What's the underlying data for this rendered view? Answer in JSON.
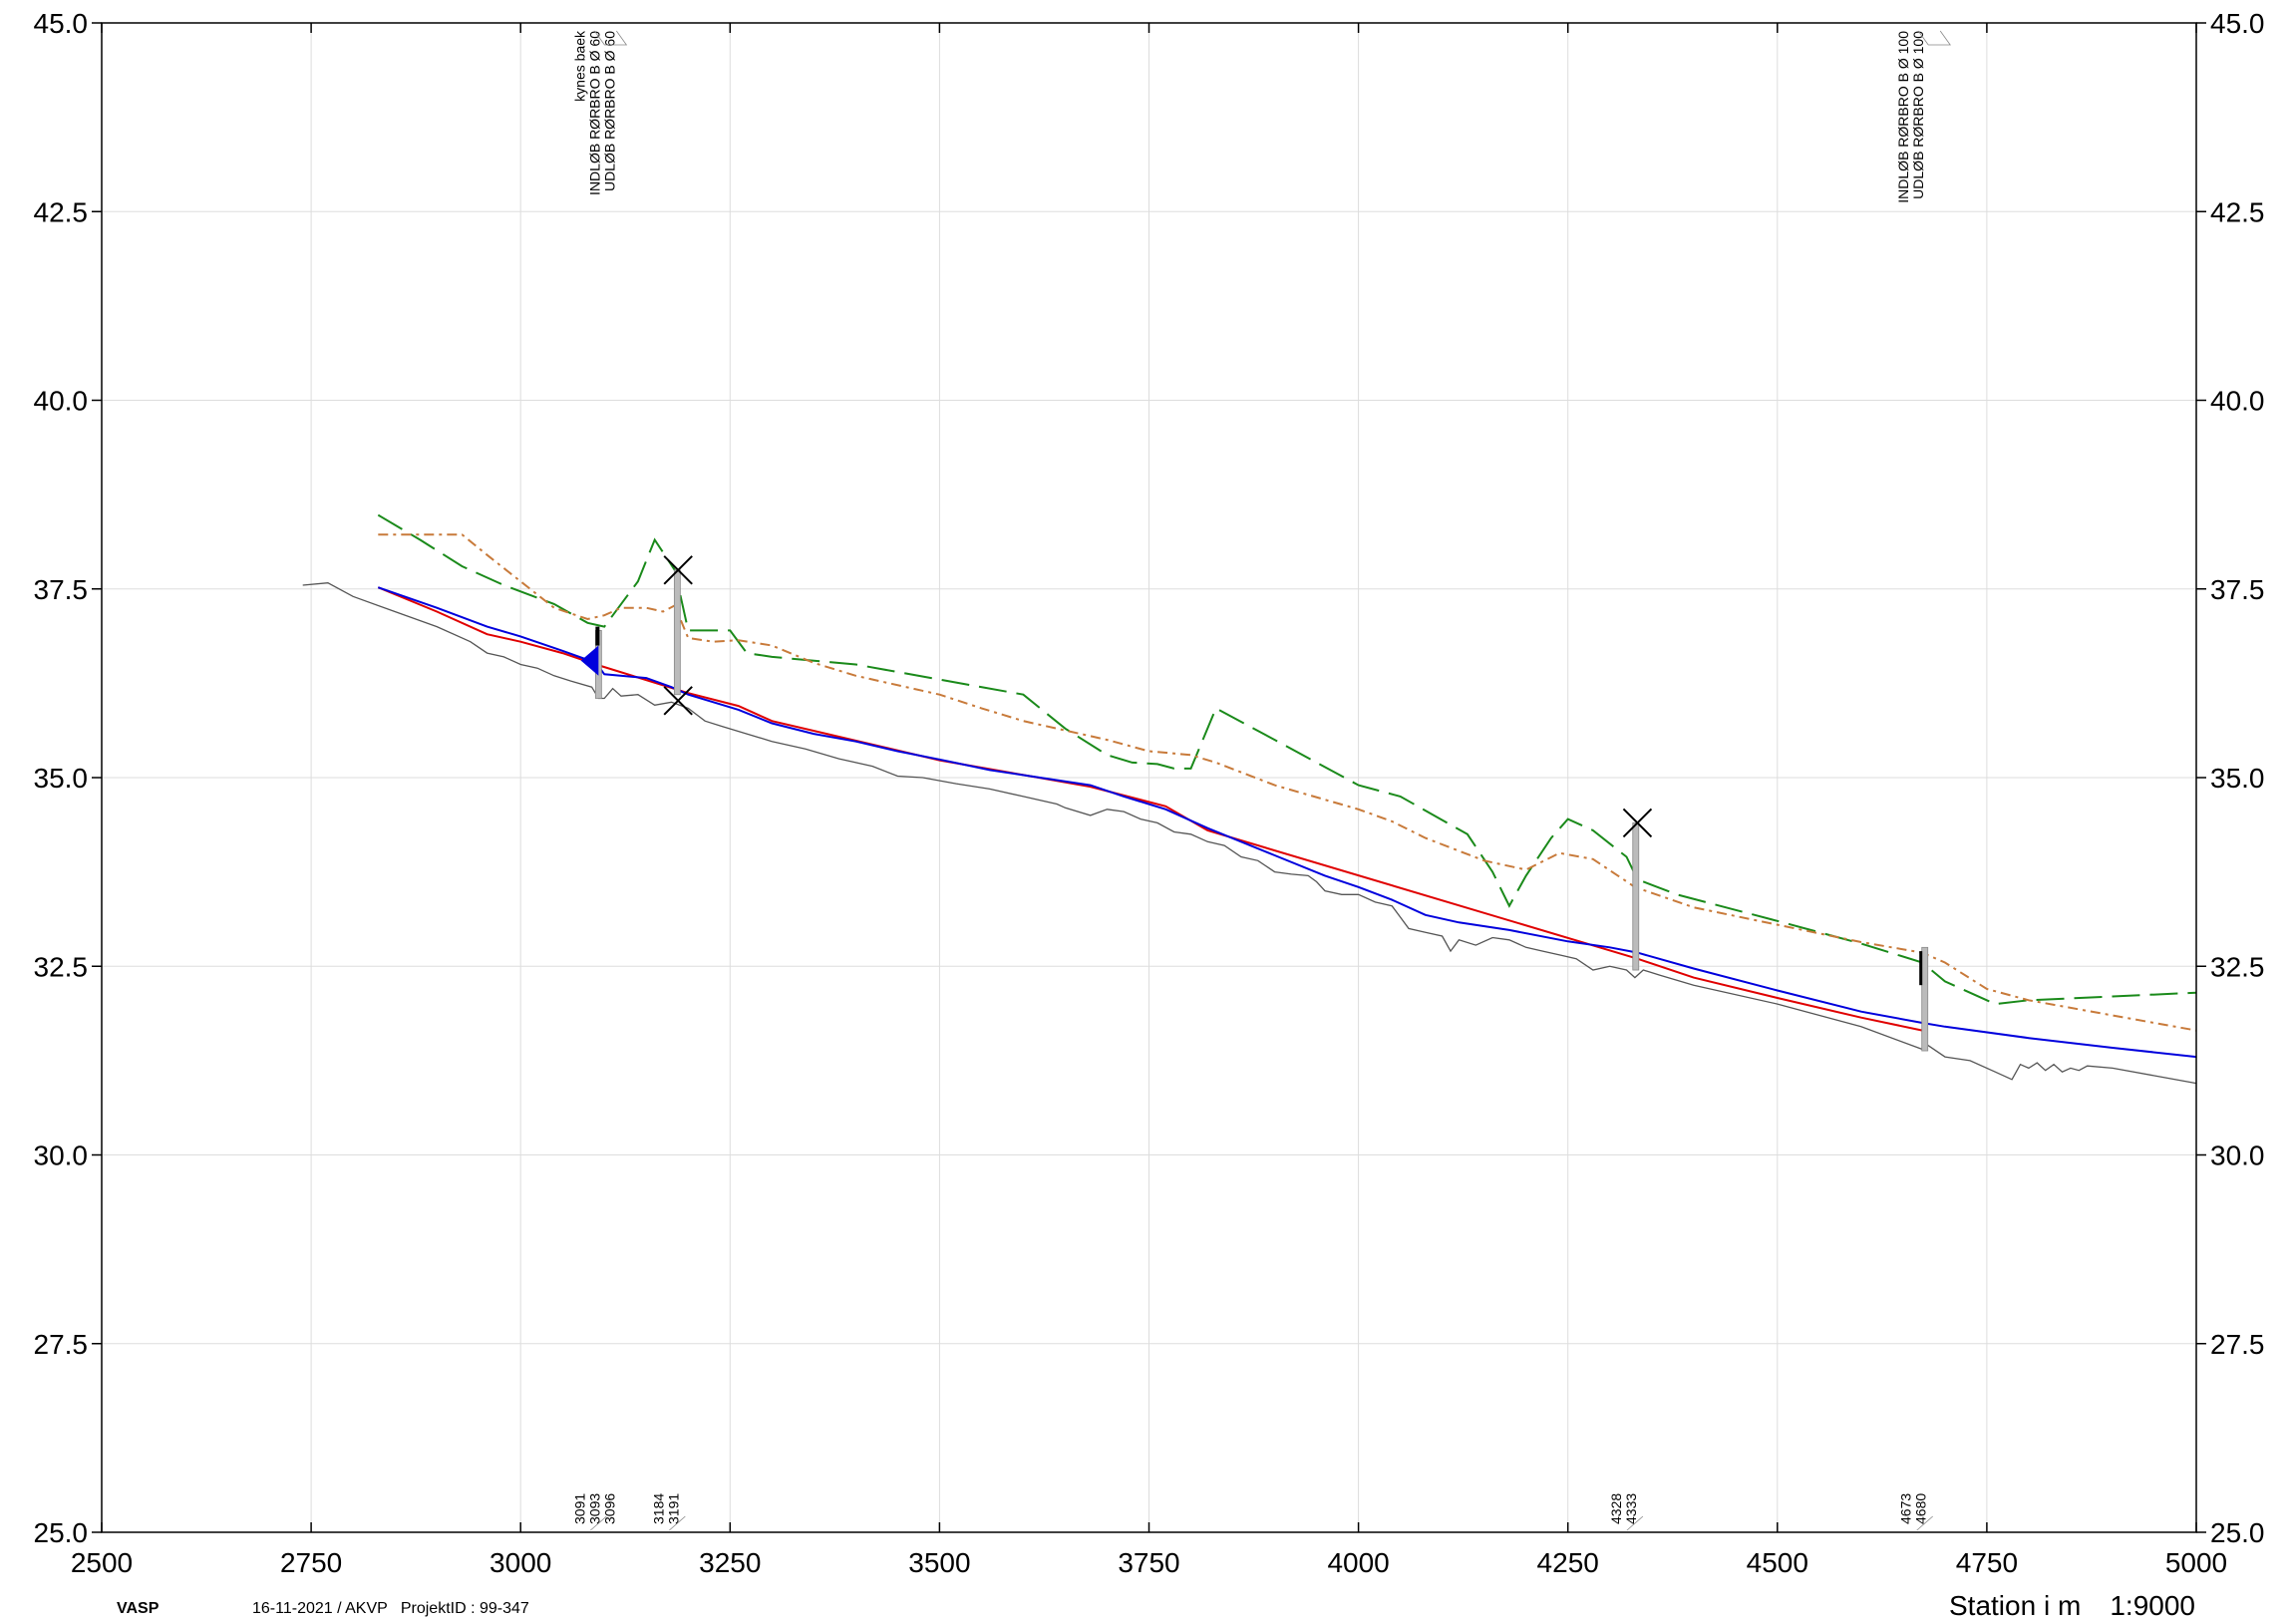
{
  "chart_data": {
    "type": "line",
    "xlim": [
      2500,
      5000
    ],
    "ylim": [
      25.0,
      45.0
    ],
    "x_ticks": [
      "2500",
      "2750",
      "3000",
      "3250",
      "3500",
      "3750",
      "4000",
      "4250",
      "4500",
      "4750",
      "5000"
    ],
    "y_ticks": [
      "25.0",
      "27.5",
      "30.0",
      "32.5",
      "35.0",
      "37.5",
      "40.0",
      "42.5",
      "45.0"
    ],
    "xlabel": "Station i m",
    "scale": "1:9000",
    "grid": true,
    "colors": {
      "terrain": "#555555",
      "red": "#e00000",
      "blue": "#0000dd",
      "green": "#1a8a1a",
      "orange": "#c87a3a",
      "structure": "#bbbbbb"
    },
    "series": [
      {
        "style": "solid-blue",
        "x": [
          2830,
          2900,
          2960,
          3000,
          3050,
          3090,
          3100,
          3150,
          3180,
          3200,
          3260,
          3300,
          3350,
          3400,
          3450,
          3500,
          3560,
          3620,
          3680,
          3720,
          3770,
          3820,
          3900,
          3960,
          4000,
          4040,
          4080,
          4120,
          4180,
          4250,
          4300,
          4333,
          4400,
          4500,
          4600,
          4673,
          4700,
          4800,
          4900,
          5000
        ],
        "y": [
          37.52,
          37.25,
          37.0,
          36.87,
          36.68,
          36.52,
          36.37,
          36.32,
          36.2,
          36.1,
          35.9,
          35.72,
          35.58,
          35.48,
          35.35,
          35.24,
          35.1,
          35.0,
          34.9,
          34.75,
          34.58,
          34.33,
          33.97,
          33.7,
          33.55,
          33.38,
          33.18,
          33.08,
          32.98,
          32.83,
          32.75,
          32.68,
          32.47,
          32.18,
          31.9,
          31.75,
          31.7,
          31.55,
          31.42,
          31.3
        ]
      },
      {
        "style": "solid-red",
        "x": [
          2830,
          2900,
          2960,
          3000,
          3050,
          3090,
          3200,
          3260,
          3300,
          3500,
          3680,
          3770,
          3820,
          4333,
          4400,
          4500,
          4600,
          4673
        ],
        "y": [
          37.52,
          37.2,
          36.9,
          36.8,
          36.65,
          36.5,
          36.12,
          35.95,
          35.75,
          35.23,
          34.88,
          34.62,
          34.3,
          32.6,
          32.35,
          32.08,
          31.82,
          31.65
        ]
      },
      {
        "style": "terrain",
        "x": [
          2740,
          2770,
          2800,
          2850,
          2900,
          2940,
          2960,
          2980,
          3000,
          3020,
          3040,
          3060,
          3085,
          3093,
          3100,
          3110,
          3120,
          3140,
          3160,
          3180,
          3200,
          3220,
          3240,
          3270,
          3300,
          3340,
          3380,
          3420,
          3450,
          3480,
          3520,
          3560,
          3600,
          3640,
          3650,
          3680,
          3700,
          3720,
          3740,
          3760,
          3780,
          3800,
          3820,
          3840,
          3860,
          3880,
          3900,
          3920,
          3940,
          3950,
          3960,
          3980,
          4000,
          4020,
          4040,
          4050,
          4060,
          4080,
          4100,
          4110,
          4120,
          4140,
          4160,
          4180,
          4200,
          4220,
          4240,
          4260,
          4280,
          4300,
          4320,
          4330,
          4340,
          4360,
          4400,
          4500,
          4600,
          4673,
          4680,
          4700,
          4730,
          4760,
          4780,
          4790,
          4800,
          4810,
          4820,
          4830,
          4840,
          4850,
          4860,
          4870,
          4900,
          4950,
          5000
        ],
        "y": [
          37.55,
          37.58,
          37.4,
          37.2,
          37.0,
          36.8,
          36.65,
          36.6,
          36.5,
          36.45,
          36.35,
          36.28,
          36.2,
          36.05,
          36.05,
          36.18,
          36.08,
          36.1,
          35.96,
          36.0,
          35.92,
          35.75,
          35.68,
          35.58,
          35.48,
          35.38,
          35.25,
          35.15,
          35.02,
          35.0,
          34.92,
          34.85,
          34.75,
          34.65,
          34.6,
          34.5,
          34.58,
          34.55,
          34.45,
          34.4,
          34.28,
          34.25,
          34.15,
          34.1,
          33.95,
          33.9,
          33.75,
          33.72,
          33.7,
          33.62,
          33.5,
          33.45,
          33.45,
          33.35,
          33.3,
          33.15,
          33.0,
          32.95,
          32.9,
          32.7,
          32.85,
          32.78,
          32.88,
          32.85,
          32.75,
          32.7,
          32.65,
          32.6,
          32.45,
          32.5,
          32.45,
          32.35,
          32.45,
          32.38,
          32.25,
          32.0,
          31.7,
          31.4,
          31.45,
          31.3,
          31.25,
          31.1,
          31.0,
          31.2,
          31.15,
          31.22,
          31.12,
          31.2,
          31.1,
          31.15,
          31.12,
          31.18,
          31.15,
          31.05,
          30.95
        ]
      },
      {
        "style": "dashed-green",
        "x": [
          2830,
          2880,
          2930,
          2980,
          3040,
          3080,
          3100,
          3140,
          3160,
          3184,
          3200,
          3250,
          3270,
          3300,
          3400,
          3500,
          3600,
          3650,
          3700,
          3730,
          3760,
          3780,
          3800,
          3830,
          3900,
          4000,
          4050,
          4130,
          4160,
          4180,
          4200,
          4230,
          4250,
          4280,
          4320,
          4333,
          4380,
          4500,
          4600,
          4673,
          4700,
          4760,
          4800,
          4900,
          5000
        ],
        "y": [
          38.48,
          38.15,
          37.8,
          37.55,
          37.3,
          37.05,
          37.0,
          37.6,
          38.15,
          37.75,
          36.95,
          36.95,
          36.65,
          36.6,
          36.5,
          36.3,
          36.1,
          35.65,
          35.3,
          35.2,
          35.18,
          35.12,
          35.12,
          35.92,
          35.5,
          34.9,
          34.75,
          34.25,
          33.75,
          33.3,
          33.7,
          34.2,
          34.45,
          34.3,
          33.95,
          33.65,
          33.45,
          33.1,
          32.8,
          32.55,
          32.3,
          32.0,
          32.05,
          32.1,
          32.15
        ]
      },
      {
        "style": "dashdot-orange",
        "x": [
          2830,
          2880,
          2930,
          2960,
          3000,
          3040,
          3080,
          3100,
          3120,
          3150,
          3170,
          3184,
          3200,
          3230,
          3260,
          3300,
          3350,
          3400,
          3500,
          3550,
          3600,
          3700,
          3750,
          3800,
          3830,
          3900,
          4000,
          4040,
          4080,
          4150,
          4200,
          4240,
          4280,
          4330,
          4400,
          4500,
          4600,
          4673,
          4700,
          4750,
          4800,
          4900,
          5000
        ],
        "y": [
          38.22,
          38.22,
          38.22,
          37.95,
          37.6,
          37.25,
          37.1,
          37.15,
          37.25,
          37.25,
          37.2,
          37.28,
          36.85,
          36.8,
          36.82,
          36.75,
          36.52,
          36.35,
          36.1,
          35.92,
          35.75,
          35.5,
          35.35,
          35.3,
          35.2,
          34.9,
          34.58,
          34.42,
          34.2,
          33.9,
          33.78,
          34.0,
          33.92,
          33.55,
          33.28,
          33.05,
          32.82,
          32.68,
          32.55,
          32.2,
          32.05,
          31.85,
          31.65
        ]
      }
    ],
    "structures": [
      {
        "stations": [
          "3091",
          "3093",
          "3096"
        ],
        "labels": [
          "kynes baek",
          "INDLØB RØRBRO B Ø 60",
          "UDLØB RØRBRO B Ø 60"
        ]
      },
      {
        "stations": [
          "3184",
          "3191"
        ],
        "labels": []
      },
      {
        "stations": [
          "4328",
          "4333"
        ],
        "labels": []
      },
      {
        "stations": [
          "4673",
          "4680"
        ],
        "labels": [
          "INDLØB RØRBRO B Ø 100",
          "UDLØB RØRBRO B Ø 100"
        ]
      }
    ]
  },
  "footer": {
    "program": "VASP",
    "meta": "16-11-2021 / AKVP   ProjektID : 99-347"
  }
}
